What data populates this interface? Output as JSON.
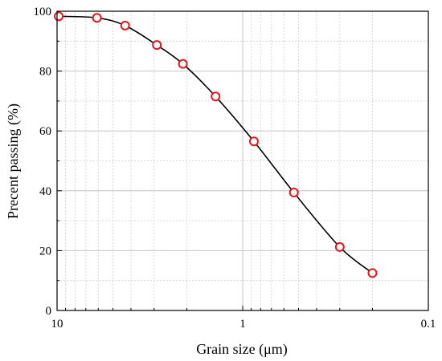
{
  "chart_data": {
    "type": "scatter",
    "xlabel": "Grain size (μm)",
    "ylabel": "Precent passing (%)",
    "xscale": "log",
    "xaxis_reversed": true,
    "xlim": [
      10,
      0.1
    ],
    "ylim": [
      0,
      100
    ],
    "x_ticks": [
      10,
      1,
      0.1
    ],
    "x_tick_labels": [
      "10",
      "1",
      "0.1"
    ],
    "y_ticks": [
      0,
      20,
      40,
      60,
      80,
      100
    ],
    "y_tick_labels": [
      "0",
      "20",
      "40",
      "60",
      "80",
      "100"
    ],
    "grid": "major and minor",
    "series": [
      {
        "points": [
          {
            "x": 9.8,
            "y": 98.3
          },
          {
            "x": 6.1,
            "y": 97.8
          },
          {
            "x": 4.3,
            "y": 95.2
          },
          {
            "x": 2.9,
            "y": 88.7
          },
          {
            "x": 2.1,
            "y": 82.4
          },
          {
            "x": 1.4,
            "y": 71.5
          },
          {
            "x": 0.87,
            "y": 56.5
          },
          {
            "x": 0.53,
            "y": 39.4
          },
          {
            "x": 0.3,
            "y": 21.2
          },
          {
            "x": 0.2,
            "y": 12.5
          }
        ],
        "marker_color": "#e8141b",
        "line_color": "#000000",
        "curve": "smooth"
      }
    ]
  }
}
